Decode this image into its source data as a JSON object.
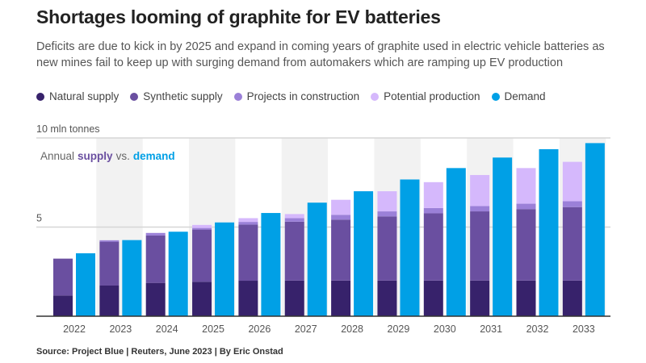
{
  "title": "Shortages looming of graphite for EV batteries",
  "subtitle": "Deficits are due to kick in by 2025 and expand in coming years of graphite used in electric vehicle batteries as new mines fail to keep up with surging demand from automakers which are ramping up EV production",
  "source": "Source: Project Blue | Reuters, June 2023 | By Eric Onstad",
  "chart_data": {
    "type": "bar",
    "subtype": "grouped stacked bar (supply stack vs demand)",
    "unit_label": "10 mln tonnes",
    "annotation": {
      "prefix": "Annual",
      "supply": "supply",
      "vs": "vs.",
      "demand": "demand"
    },
    "ylim": [
      0,
      10
    ],
    "yticks": [
      {
        "value": 5,
        "label": "5"
      },
      {
        "value": 10,
        "label": "10 mln tonnes"
      }
    ],
    "grid": true,
    "legend_position": "top-left",
    "categories": [
      "2022",
      "2023",
      "2024",
      "2025",
      "2026",
      "2027",
      "2028",
      "2029",
      "2030",
      "2031",
      "2032",
      "2033"
    ],
    "series": [
      {
        "name": "Natural supply",
        "stack": "supply",
        "color": "#37226b",
        "values": [
          1.16,
          1.72,
          1.87,
          1.93,
          1.99,
          2.0,
          2.0,
          2.0,
          2.0,
          2.0,
          2.0,
          2.0
        ]
      },
      {
        "name": "Synthetic supply",
        "stack": "supply",
        "color": "#6a4fa0",
        "values": [
          2.07,
          2.46,
          2.66,
          2.93,
          3.15,
          3.3,
          3.42,
          3.6,
          3.77,
          3.88,
          4.01,
          4.12
        ]
      },
      {
        "name": "Projects in construction",
        "stack": "supply",
        "color": "#9b80d8",
        "values": [
          0,
          0.08,
          0.14,
          0.09,
          0.15,
          0.2,
          0.27,
          0.28,
          0.3,
          0.3,
          0.3,
          0.33
        ]
      },
      {
        "name": "Potential production",
        "stack": "supply",
        "color": "#d5b8fc",
        "values": [
          0,
          0,
          0,
          0.17,
          0.21,
          0.23,
          0.84,
          1.13,
          1.45,
          1.74,
          2.0,
          2.21
        ]
      },
      {
        "name": "Demand",
        "stack": "demand",
        "color": "#00a0e6",
        "values": [
          3.53,
          4.27,
          4.74,
          5.26,
          5.79,
          6.37,
          7.01,
          7.67,
          8.31,
          8.9,
          9.37,
          9.71
        ]
      }
    ]
  }
}
